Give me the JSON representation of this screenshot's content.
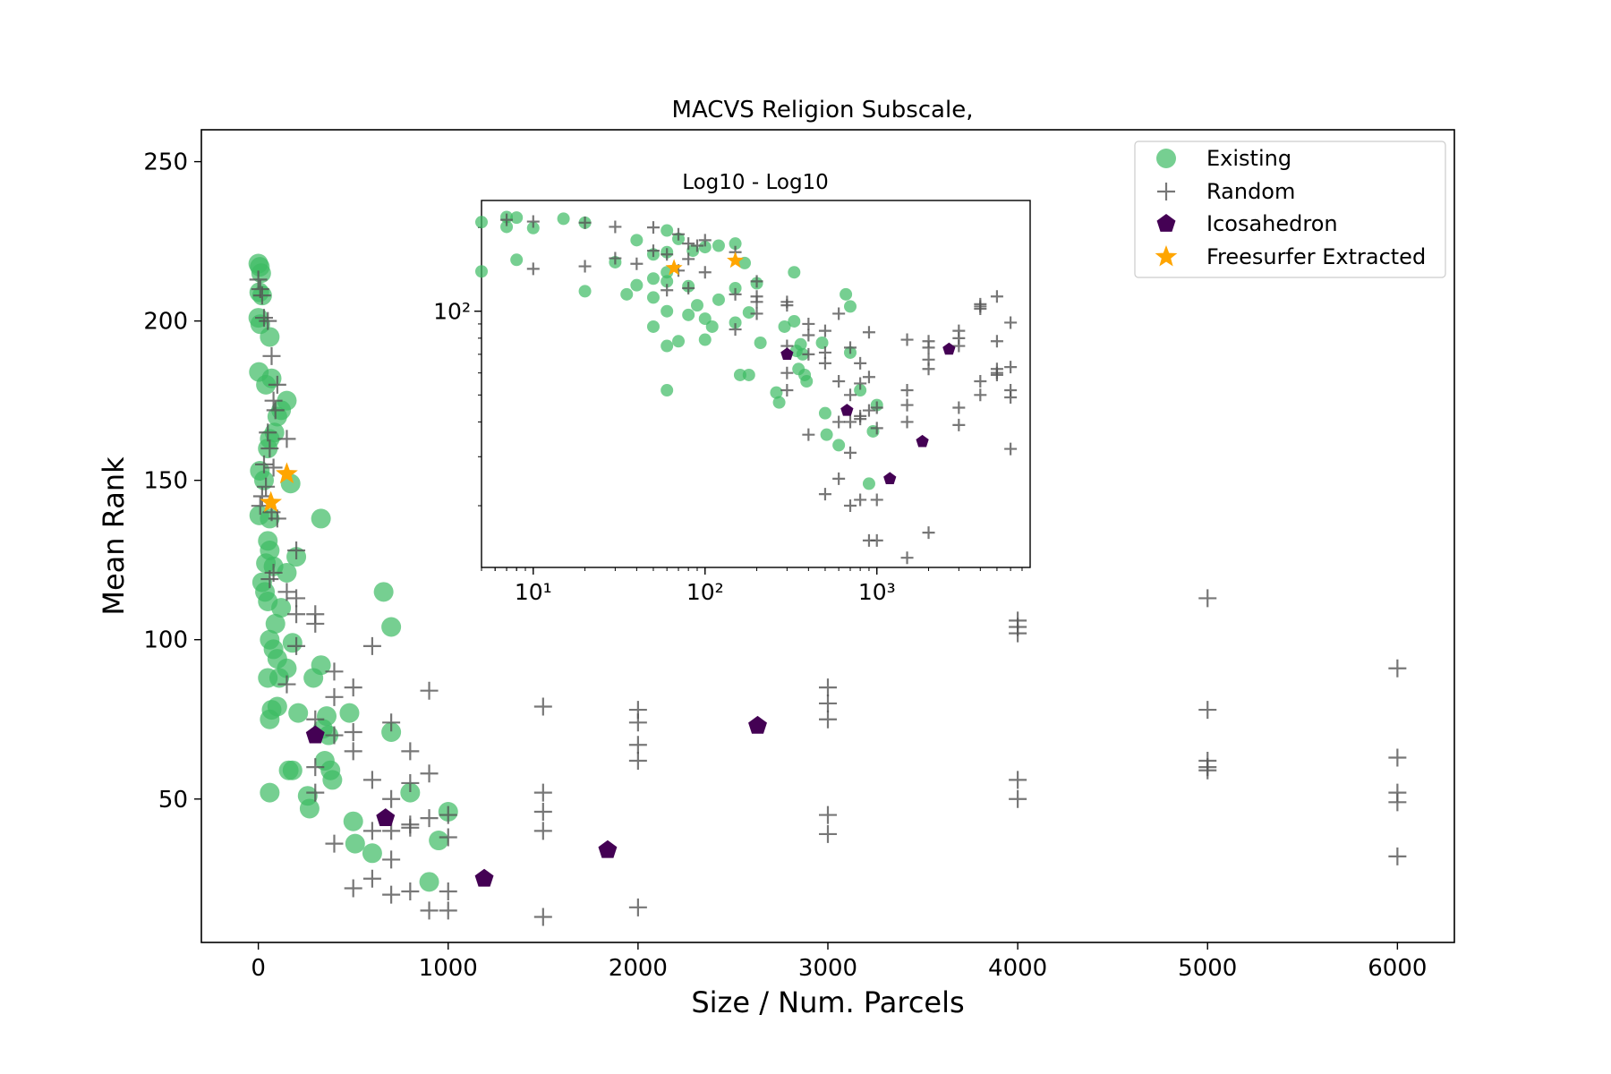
{
  "chart_data": [
    {
      "type": "scatter",
      "title": "MACVS Religion Subscale,",
      "xlabel": "Size / Num. Parcels",
      "ylabel": "Mean Rank",
      "xlim": [
        -300,
        6300
      ],
      "ylim": [
        5,
        260
      ],
      "xticks": [
        0,
        1000,
        2000,
        3000,
        4000,
        5000,
        6000
      ],
      "xtick_labels": [
        "0",
        "1000",
        "2000",
        "3000",
        "4000",
        "5000",
        "6000"
      ],
      "yticks": [
        50,
        100,
        150,
        200,
        250
      ],
      "ytick_labels": [
        "50",
        "100",
        "150",
        "200",
        "250"
      ],
      "grid": false,
      "legend_position": "top-right",
      "series": [
        {
          "name": "Existing",
          "marker": "circle",
          "color": "#3cba63",
          "points": [
            [
              0,
              218
            ],
            [
              8,
              217
            ],
            [
              15,
              215
            ],
            [
              5,
              209
            ],
            [
              20,
              208
            ],
            [
              0,
              201
            ],
            [
              10,
              199
            ],
            [
              60,
              195
            ],
            [
              3,
              184
            ],
            [
              70,
              182
            ],
            [
              40,
              180
            ],
            [
              150,
              175
            ],
            [
              120,
              172
            ],
            [
              100,
              170
            ],
            [
              85,
              165
            ],
            [
              60,
              163
            ],
            [
              50,
              160
            ],
            [
              8,
              153
            ],
            [
              30,
              150
            ],
            [
              170,
              149
            ],
            [
              5,
              139
            ],
            [
              60,
              138
            ],
            [
              330,
              138
            ],
            [
              50,
              131
            ],
            [
              60,
              128
            ],
            [
              40,
              124
            ],
            [
              200,
              126
            ],
            [
              80,
              123
            ],
            [
              150,
              121
            ],
            [
              20,
              118
            ],
            [
              35,
              115
            ],
            [
              660,
              115
            ],
            [
              50,
              112
            ],
            [
              120,
              110
            ],
            [
              90,
              105
            ],
            [
              700,
              104
            ],
            [
              60,
              100
            ],
            [
              180,
              99
            ],
            [
              80,
              97
            ],
            [
              100,
              94
            ],
            [
              330,
              92
            ],
            [
              150,
              91
            ],
            [
              50,
              88
            ],
            [
              110,
              88
            ],
            [
              290,
              88
            ],
            [
              100,
              79
            ],
            [
              70,
              78
            ],
            [
              210,
              77
            ],
            [
              360,
              76
            ],
            [
              480,
              77
            ],
            [
              60,
              75
            ],
            [
              340,
              72
            ],
            [
              700,
              71
            ],
            [
              370,
              70
            ],
            [
              350,
              62
            ],
            [
              380,
              59
            ],
            [
              390,
              56
            ],
            [
              180,
              59
            ],
            [
              160,
              59
            ],
            [
              260,
              51
            ],
            [
              60,
              52
            ],
            [
              270,
              47
            ],
            [
              800,
              52
            ],
            [
              1000,
              46
            ],
            [
              500,
              43
            ],
            [
              510,
              36
            ],
            [
              600,
              33
            ],
            [
              950,
              37
            ],
            [
              900,
              24
            ]
          ]
        },
        {
          "name": "Random",
          "marker": "plus",
          "color": "#555555",
          "points": [
            [
              0,
              213
            ],
            [
              10,
              210
            ],
            [
              20,
              208
            ],
            [
              30,
              201
            ],
            [
              50,
              200
            ],
            [
              70,
              189
            ],
            [
              100,
              180
            ],
            [
              80,
              175
            ],
            [
              90,
              172
            ],
            [
              50,
              165
            ],
            [
              150,
              163
            ],
            [
              60,
              160
            ],
            [
              30,
              155
            ],
            [
              80,
              154
            ],
            [
              40,
              148
            ],
            [
              20,
              145
            ],
            [
              10,
              142
            ],
            [
              70,
              140
            ],
            [
              100,
              138
            ],
            [
              200,
              128
            ],
            [
              80,
              121
            ],
            [
              60,
              119
            ],
            [
              150,
              115
            ],
            [
              200,
              113
            ],
            [
              300,
              108
            ],
            [
              200,
              108
            ],
            [
              300,
              105
            ],
            [
              200,
              98
            ],
            [
              600,
              98
            ],
            [
              400,
              90
            ],
            [
              150,
              86
            ],
            [
              500,
              85
            ],
            [
              400,
              82
            ],
            [
              900,
              84
            ],
            [
              300,
              75
            ],
            [
              700,
              74
            ],
            [
              400,
              70
            ],
            [
              500,
              65
            ],
            [
              800,
              65
            ],
            [
              500,
              71
            ],
            [
              300,
              60
            ],
            [
              900,
              58
            ],
            [
              600,
              56
            ],
            [
              800,
              55
            ],
            [
              700,
              50
            ],
            [
              300,
              52
            ],
            [
              800,
              41
            ],
            [
              900,
              44
            ],
            [
              1000,
              45
            ],
            [
              1000,
              38
            ],
            [
              700,
              40
            ],
            [
              600,
              40
            ],
            [
              800,
              42
            ],
            [
              400,
              36
            ],
            [
              700,
              31
            ],
            [
              600,
              25
            ],
            [
              500,
              22
            ],
            [
              800,
              21
            ],
            [
              700,
              20
            ],
            [
              1000,
              21
            ],
            [
              900,
              15
            ],
            [
              1000,
              15
            ],
            [
              1500,
              79
            ],
            [
              1500,
              52
            ],
            [
              1500,
              46
            ],
            [
              1500,
              40
            ],
            [
              1500,
              13
            ],
            [
              2000,
              78
            ],
            [
              2000,
              74
            ],
            [
              2000,
              67
            ],
            [
              2000,
              62
            ],
            [
              2000,
              16
            ],
            [
              3000,
              85
            ],
            [
              3000,
              80
            ],
            [
              3000,
              75
            ],
            [
              3000,
              45
            ],
            [
              3000,
              39
            ],
            [
              4000,
              106
            ],
            [
              4000,
              104
            ],
            [
              4000,
              102
            ],
            [
              4000,
              56
            ],
            [
              4000,
              50
            ],
            [
              5000,
              113
            ],
            [
              5000,
              78
            ],
            [
              5000,
              62
            ],
            [
              5000,
              60
            ],
            [
              5000,
              59
            ],
            [
              6000,
              91
            ],
            [
              6000,
              63
            ],
            [
              6000,
              52
            ],
            [
              6000,
              49
            ],
            [
              6000,
              32
            ]
          ]
        },
        {
          "name": "Icosahedron",
          "marker": "pentagon",
          "color": "#440154",
          "points": [
            [
              300,
              70
            ],
            [
              670,
              44
            ],
            [
              1190,
              25
            ],
            [
              1840,
              34
            ],
            [
              2630,
              73
            ]
          ]
        },
        {
          "name": "Freesurfer Extracted",
          "marker": "star",
          "color": "#ffa500",
          "points": [
            [
              150,
              152
            ],
            [
              66,
              143
            ]
          ]
        }
      ]
    },
    {
      "type": "scatter",
      "title": "Log10 - Log10",
      "xscale": "log",
      "yscale": "log",
      "xlim": [
        5,
        7800
      ],
      "ylim": [
        12,
        250
      ],
      "xticks": [
        10,
        100,
        1000
      ],
      "xtick_labels": [
        "10¹",
        "10²",
        "10³"
      ],
      "yticks": [
        100
      ],
      "ytick_labels": [
        "10²"
      ],
      "grid": false,
      "note": "inset; same data as main panel on log-log axes"
    }
  ],
  "legend": {
    "entries": [
      "Existing",
      "Random",
      "Icosahedron",
      "Freesurfer Extracted"
    ]
  },
  "colors": {
    "existing": "#3cba63",
    "random": "#555555",
    "icosahedron": "#440154",
    "freesurfer": "#ffa500"
  }
}
